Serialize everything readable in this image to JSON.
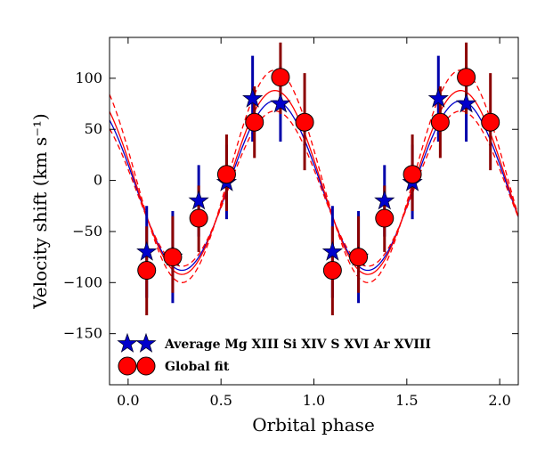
{
  "chart_data": {
    "type": "scatter",
    "title": "",
    "xlabel": "Orbital phase",
    "ylabel": "Velocity shift (km s⁻¹)",
    "xlim": [
      -0.1,
      2.1
    ],
    "ylim": [
      -200,
      140
    ],
    "xticks": [
      0.0,
      0.5,
      1.0,
      1.5,
      2.0
    ],
    "xtick_labels": [
      "0.0",
      "0.5",
      "1.0",
      "1.5",
      "2.0"
    ],
    "yticks": [
      -150,
      -100,
      -50,
      0,
      50,
      100
    ],
    "ytick_labels": [
      "−150",
      "−100",
      "−50",
      "0",
      "50",
      "100"
    ],
    "legend_position": "lower-left",
    "series": [
      {
        "name": "Average Mg XIII  Si XIV  S XVI  Ar XVIII",
        "marker": "star",
        "color": "#0000cc",
        "errorbar_color": "#0000aa",
        "points": [
          {
            "x": 0.1,
            "y": -70,
            "ylo": -115,
            "yhi": -25
          },
          {
            "x": 0.24,
            "y": -75,
            "ylo": -120,
            "yhi": -30
          },
          {
            "x": 0.38,
            "y": -20,
            "ylo": -55,
            "yhi": 15
          },
          {
            "x": 0.53,
            "y": -2,
            "ylo": -38,
            "yhi": 35
          },
          {
            "x": 0.67,
            "y": 80,
            "ylo": 38,
            "yhi": 122
          },
          {
            "x": 0.82,
            "y": 75,
            "ylo": 38,
            "yhi": 112
          },
          {
            "x": 1.1,
            "y": -70,
            "ylo": -115,
            "yhi": -25
          },
          {
            "x": 1.24,
            "y": -75,
            "ylo": -120,
            "yhi": -30
          },
          {
            "x": 1.38,
            "y": -20,
            "ylo": -55,
            "yhi": 15
          },
          {
            "x": 1.53,
            "y": -2,
            "ylo": -38,
            "yhi": 35
          },
          {
            "x": 1.67,
            "y": 80,
            "ylo": 38,
            "yhi": 122
          },
          {
            "x": 1.82,
            "y": 75,
            "ylo": 38,
            "yhi": 112
          }
        ]
      },
      {
        "name": "Global fit",
        "marker": "circle",
        "color": "#ff0000",
        "errorbar_color": "#8b0000",
        "points": [
          {
            "x": 0.1,
            "y": -88,
            "ylo": -132,
            "yhi": -45
          },
          {
            "x": 0.24,
            "y": -75,
            "ylo": -110,
            "yhi": -35
          },
          {
            "x": 0.38,
            "y": -37,
            "ylo": -70,
            "yhi": -5
          },
          {
            "x": 0.53,
            "y": 6,
            "ylo": -30,
            "yhi": 45
          },
          {
            "x": 0.68,
            "y": 57,
            "ylo": 22,
            "yhi": 92
          },
          {
            "x": 0.82,
            "y": 101,
            "ylo": 65,
            "yhi": 135
          },
          {
            "x": 0.95,
            "y": 57,
            "ylo": 10,
            "yhi": 105
          },
          {
            "x": 1.1,
            "y": -88,
            "ylo": -132,
            "yhi": -45
          },
          {
            "x": 1.24,
            "y": -75,
            "ylo": -110,
            "yhi": -35
          },
          {
            "x": 1.38,
            "y": -37,
            "ylo": -70,
            "yhi": -5
          },
          {
            "x": 1.53,
            "y": 6,
            "ylo": -30,
            "yhi": 45
          },
          {
            "x": 1.68,
            "y": 57,
            "ylo": 22,
            "yhi": 92
          },
          {
            "x": 1.82,
            "y": 101,
            "ylo": 65,
            "yhi": 135
          },
          {
            "x": 1.95,
            "y": 57,
            "ylo": 10,
            "yhi": 105
          }
        ]
      }
    ],
    "fit_curves": [
      {
        "name": "blue-fit",
        "color": "#0000cc",
        "style": "solid",
        "offset": -5,
        "amplitude": 83,
        "phase_of_max": 0.79
      },
      {
        "name": "red-fit",
        "color": "#ff0000",
        "style": "solid",
        "offset": -2,
        "amplitude": 90,
        "phase_of_max": 0.79
      },
      {
        "name": "red-fit-upper",
        "color": "#ff0000",
        "style": "dashed",
        "offset": 4,
        "amplitude": 104,
        "phase_of_max": 0.79
      },
      {
        "name": "red-fit-lower",
        "color": "#ff0000",
        "style": "dashed",
        "offset": -8,
        "amplitude": 76,
        "phase_of_max": 0.79
      }
    ]
  }
}
